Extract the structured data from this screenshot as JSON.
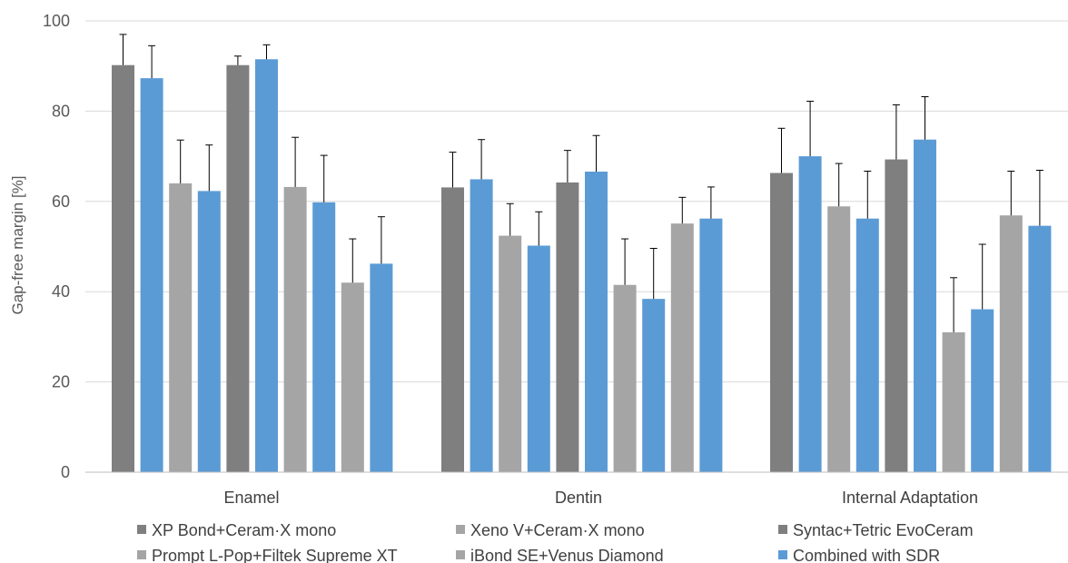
{
  "chart_data": {
    "type": "bar",
    "ylabel": "Gap-free margin [%]",
    "ylim": [
      0,
      100
    ],
    "yticks": [
      "0",
      "20",
      "40",
      "60",
      "80",
      "100"
    ],
    "grid": true,
    "categories": [
      "Enamel",
      "Dentin",
      "Internal Adaptation"
    ],
    "legend": {
      "placement": "bottom",
      "entries": [
        {
          "label": "XP Bond+Ceram·X mono",
          "color": "#7f7f7f"
        },
        {
          "label": "Xeno V+Ceram·X mono",
          "color": "#a5a5a5"
        },
        {
          "label": "Syntac+Tetric EvoCeram",
          "color": "#7f7f7f"
        },
        {
          "label": "Prompt L-Pop+Filtek Supreme XT",
          "color": "#a5a5a5"
        },
        {
          "label": "iBond SE+Venus Diamond",
          "color": "#a5a5a5"
        },
        {
          "label": "Combined with SDR",
          "color": "#5b9bd5"
        }
      ]
    },
    "bar_colors": [
      "#7f7f7f",
      "#5b9bd5",
      "#a5a5a5",
      "#5b9bd5",
      "#7f7f7f",
      "#5b9bd5",
      "#a5a5a5",
      "#5b9bd5",
      "#a5a5a5",
      "#5b9bd5",
      "#a5a5a5",
      "#5b9bd5"
    ],
    "groups": [
      {
        "category": "Enamel",
        "values": [
          90.2,
          87.3,
          64.0,
          62.3,
          90.2,
          91.5,
          63.2,
          59.8,
          42.0,
          46.2,
          null,
          null
        ],
        "error_upper": [
          6.8,
          7.2,
          9.6,
          10.2,
          2.0,
          3.2,
          11.0,
          10.4,
          9.7,
          10.4,
          null,
          null
        ]
      },
      {
        "category": "Dentin",
        "values": [
          63.1,
          64.9,
          52.4,
          50.2,
          64.2,
          66.6,
          41.5,
          38.4,
          55.1,
          56.2,
          null,
          null
        ],
        "error_upper": [
          7.8,
          8.8,
          7.1,
          7.5,
          7.1,
          8.0,
          10.2,
          11.2,
          5.8,
          7.0,
          null,
          null
        ]
      },
      {
        "category": "Internal Adaptation",
        "values": [
          66.3,
          70.0,
          58.9,
          56.2,
          69.3,
          73.7,
          31.0,
          36.1,
          56.9,
          54.6,
          null,
          null
        ],
        "error_upper": [
          9.9,
          12.2,
          9.5,
          10.5,
          12.1,
          9.5,
          12.1,
          14.4,
          9.8,
          12.3,
          null,
          null
        ]
      }
    ]
  }
}
